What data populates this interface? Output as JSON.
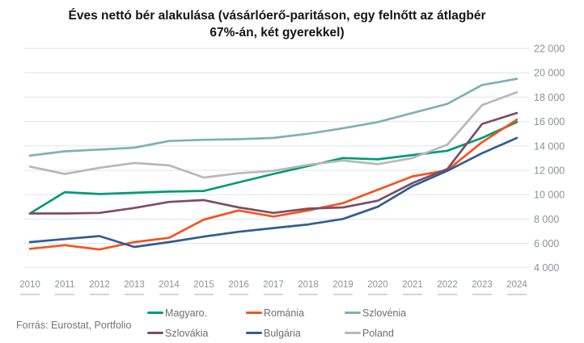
{
  "footer": {
    "source": "Forrás: Eurostat, Portfolio"
  },
  "chart_data": {
    "type": "line",
    "title": "Éves nettó bér alakulása (vásárlóerő-paritáson, egy felnőtt az átlagbér 67%-án, két gyerekkel)",
    "x": [
      "2010",
      "2011",
      "2012",
      "2013",
      "2014",
      "2015",
      "2016",
      "2017",
      "2018",
      "2019",
      "2020",
      "2021",
      "2022",
      "2023",
      "2024"
    ],
    "series": [
      {
        "name": "Magyaro.",
        "color": "#009a78",
        "values": [
          8450,
          10200,
          10050,
          10150,
          10250,
          10300,
          11000,
          11700,
          12350,
          13000,
          12900,
          13250,
          13600,
          14650,
          15950
        ]
      },
      {
        "name": "Románia",
        "color": "#f5531d",
        "values": [
          5550,
          5850,
          5500,
          6100,
          6450,
          7950,
          8700,
          8200,
          8700,
          9300,
          10400,
          11500,
          12000,
          14300,
          16150
        ]
      },
      {
        "name": "Szlovénia",
        "color": "#7cb1b8",
        "values": [
          13200,
          13550,
          13700,
          13850,
          14400,
          14500,
          14550,
          14650,
          15000,
          15450,
          15950,
          16700,
          17450,
          19000,
          19500
        ]
      },
      {
        "name": "Szlovákia",
        "color": "#7c4e66",
        "values": [
          8450,
          8450,
          8500,
          8900,
          9400,
          9550,
          8950,
          8500,
          8850,
          8950,
          9500,
          10950,
          12100,
          15800,
          16700
        ]
      },
      {
        "name": "Bulgária",
        "color": "#315d90",
        "values": [
          6100,
          6350,
          6600,
          5700,
          6100,
          6550,
          6950,
          7250,
          7550,
          8000,
          9000,
          10700,
          11950,
          13400,
          14650
        ]
      },
      {
        "name": "Poland",
        "color": "#b8b8b8",
        "values": [
          12300,
          11700,
          12200,
          12600,
          12400,
          11400,
          11750,
          11950,
          12450,
          12800,
          12500,
          13000,
          14100,
          17350,
          18400
        ]
      }
    ],
    "ylim": [
      4000,
      22000
    ],
    "y_tick_step": 2000,
    "y_tick_labels": [
      "4 000",
      "6 000",
      "8 000",
      "10 000",
      "12 000",
      "14 000",
      "16 000",
      "18 000",
      "20 000",
      "22 000"
    ],
    "xlabel": "",
    "ylabel": "",
    "grid": "horizontal",
    "gridline_color": "#dee5e8",
    "tick_dash_color": "#c6cccf",
    "legend_position": "bottom",
    "legend_rows": [
      [
        "Magyaro.",
        "Románia",
        "Szlovénia"
      ],
      [
        "Szlovákia",
        "Bulgária",
        "Poland"
      ]
    ]
  }
}
